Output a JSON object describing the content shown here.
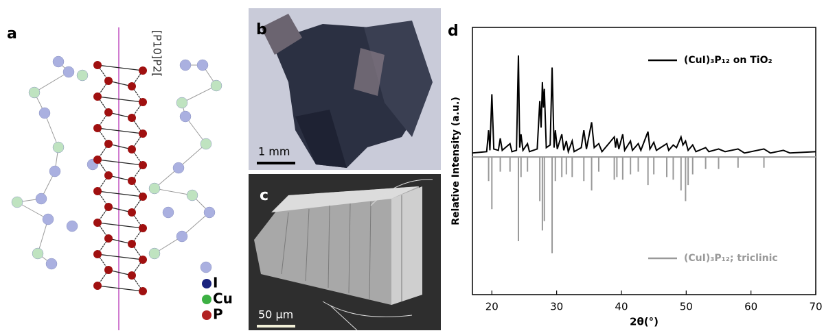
{
  "panel_a": {
    "label": "a",
    "chain_label": "[P10]P2[",
    "legend": [
      "I",
      "Cu",
      "P"
    ]
  },
  "panel_b": {
    "label": "b",
    "scale_bar": "1 mm"
  },
  "panel_c": {
    "label": "c",
    "scale_bar": "50 µm"
  },
  "chart_data": {
    "type": "line",
    "panel_label": "d",
    "xlabel": "2θ(°)",
    "ylabel": "Relative Intensity (a.u.)",
    "xlim": [
      17,
      70
    ],
    "xticks": [
      20,
      30,
      40,
      50,
      60,
      70
    ],
    "ylim": [
      -100,
      100
    ],
    "series": [
      {
        "name": "(CuI)₃P₁₂ on TiO₂",
        "color": "#000000",
        "style": "line",
        "x": [
          17,
          19.2,
          19.5,
          19.7,
          20.0,
          20.3,
          21.0,
          21.3,
          21.6,
          22.8,
          23.1,
          23.8,
          24.1,
          24.3,
          24.5,
          24.8,
          25.5,
          25.8,
          27.0,
          27.4,
          27.6,
          27.8,
          27.95,
          28.1,
          28.4,
          29.0,
          29.3,
          29.6,
          29.8,
          30.1,
          30.8,
          31.1,
          31.5,
          31.8,
          32.4,
          32.7,
          33.8,
          34.2,
          34.6,
          35.4,
          35.8,
          36.5,
          37,
          38.9,
          39.1,
          39.3,
          39.6,
          40.2,
          40.5,
          41.4,
          41.7,
          42.6,
          43,
          44.1,
          44.4,
          45.0,
          45.4,
          47.0,
          47.3,
          48.0,
          48.5,
          49.2,
          49.5,
          49.9,
          50.3,
          51.0,
          51.5,
          53,
          53.5,
          55,
          56,
          58,
          59,
          62,
          63,
          65,
          66,
          70
        ],
        "values": [
          6,
          7,
          23,
          8,
          50,
          9,
          8,
          17,
          8,
          13,
          7,
          8,
          79,
          10,
          20,
          8,
          13,
          7,
          9,
          45,
          25,
          59,
          40,
          54,
          10,
          12,
          70,
          10,
          23,
          9,
          20,
          8,
          15,
          7,
          15,
          7,
          10,
          23,
          9,
          29,
          10,
          13,
          7,
          18,
          10,
          17,
          9,
          20,
          8,
          15,
          8,
          13,
          8,
          22,
          9,
          14,
          8,
          13,
          8,
          12,
          10,
          18,
          12,
          15,
          8,
          12,
          7,
          10,
          7,
          9,
          7,
          9,
          6,
          9,
          6,
          8,
          6,
          7
        ]
      },
      {
        "name": "(CuI)₃P₁₂; triclinic",
        "color": "#999999",
        "style": "stick",
        "baseline": 3,
        "x": [
          19.5,
          20.0,
          21.3,
          22.8,
          24.1,
          24.5,
          25.5,
          27.4,
          27.8,
          28.1,
          29.3,
          29.8,
          30.8,
          31.5,
          32.4,
          34.2,
          35.4,
          36.5,
          38.9,
          39.3,
          40.2,
          41.4,
          42.6,
          44.1,
          45.0,
          47.0,
          48.0,
          49.2,
          49.9,
          50.3,
          51.0,
          53,
          55,
          58,
          62
        ],
        "values": [
          -15,
          -36,
          -8,
          -8,
          -60,
          -12,
          -8,
          -30,
          -52,
          -45,
          -69,
          -15,
          -12,
          -10,
          -12,
          -15,
          -22,
          -8,
          -14,
          -12,
          -14,
          -10,
          -8,
          -18,
          -10,
          -12,
          -14,
          -22,
          -30,
          -18,
          -10,
          -6,
          -6,
          -5,
          -5
        ]
      }
    ]
  }
}
